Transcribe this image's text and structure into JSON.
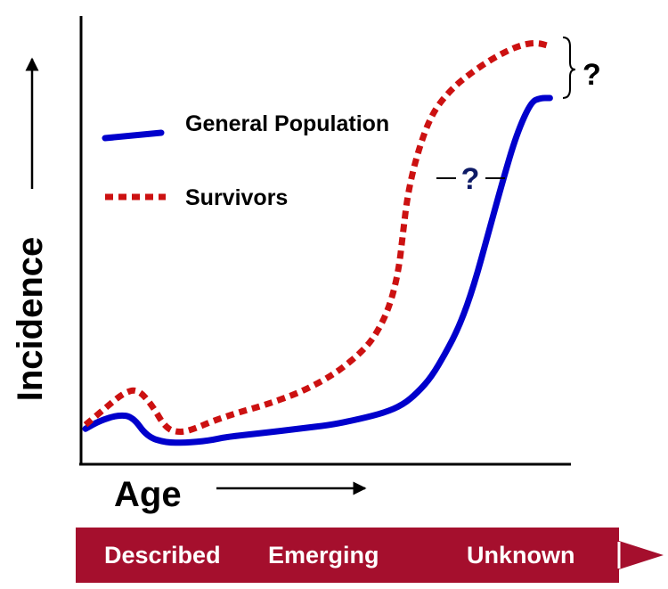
{
  "chart_data": {
    "type": "line",
    "title": "",
    "xlabel": "Age",
    "ylabel": "Incidence",
    "grid": false,
    "legend_placement": "top-left",
    "x_range": [
      0,
      100
    ],
    "y_range": [
      0,
      100
    ],
    "series": [
      {
        "name": "General Population",
        "style": "solid",
        "color": "#0000cc",
        "points": [
          [
            0,
            6
          ],
          [
            3,
            8
          ],
          [
            7,
            9.5
          ],
          [
            10,
            9
          ],
          [
            13,
            4
          ],
          [
            17,
            2.5
          ],
          [
            21,
            2.5
          ],
          [
            26,
            3
          ],
          [
            30,
            4
          ],
          [
            38,
            5
          ],
          [
            45,
            6
          ],
          [
            52,
            7
          ],
          [
            58,
            8.5
          ],
          [
            63,
            10
          ],
          [
            67,
            12
          ],
          [
            70,
            15
          ],
          [
            73,
            19
          ],
          [
            76,
            25
          ],
          [
            79,
            32
          ],
          [
            82,
            42
          ],
          [
            85,
            55
          ],
          [
            88,
            68
          ],
          [
            91,
            80
          ],
          [
            94,
            88
          ],
          [
            96,
            89
          ],
          [
            98,
            89
          ]
        ]
      },
      {
        "name": "Survivors",
        "style": "dotted",
        "color": "#cc1111",
        "points": [
          [
            0,
            7
          ],
          [
            4,
            11
          ],
          [
            8,
            15
          ],
          [
            11,
            16
          ],
          [
            14,
            12
          ],
          [
            17,
            6
          ],
          [
            20,
            5
          ],
          [
            23,
            6
          ],
          [
            27,
            8
          ],
          [
            32,
            10
          ],
          [
            38,
            12
          ],
          [
            45,
            15
          ],
          [
            50,
            18
          ],
          [
            54,
            21
          ],
          [
            58,
            25
          ],
          [
            61,
            29
          ],
          [
            64,
            36
          ],
          [
            66,
            45
          ],
          [
            67,
            55
          ],
          [
            68,
            65
          ],
          [
            70,
            75
          ],
          [
            73,
            85
          ],
          [
            77,
            91
          ],
          [
            81,
            95
          ],
          [
            86,
            99
          ],
          [
            91,
            102
          ],
          [
            95,
            103
          ],
          [
            98,
            102
          ]
        ]
      }
    ],
    "annotations": [
      {
        "text": "?",
        "color": "#000000",
        "note": "gap between curves at peak, marked with a brace"
      },
      {
        "text": "?",
        "color": "#0d1a66",
        "note": "horizontal gap between the two rising curves"
      }
    ]
  },
  "stage_bar": {
    "color": "#a50f2d",
    "labels": [
      "Described",
      "Emerging",
      "Unknown"
    ]
  }
}
